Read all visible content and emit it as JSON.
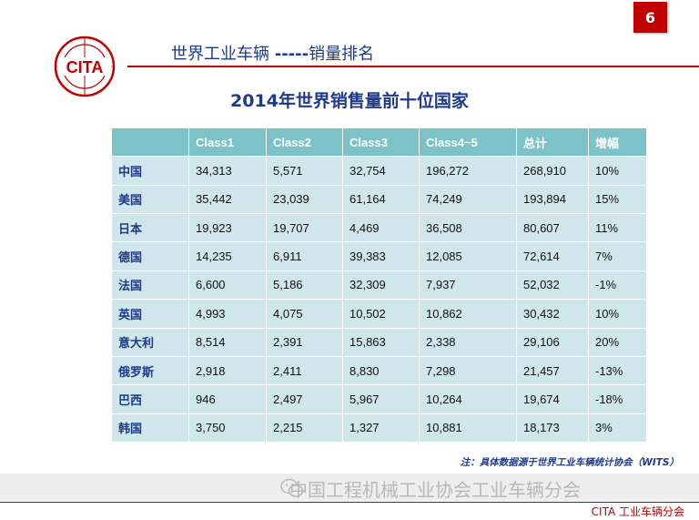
{
  "page_number": "6",
  "logo": {
    "text": "CITA",
    "color": "#c00000"
  },
  "header": {
    "title_left": "世界工业车辆",
    "title_sep": "-----",
    "title_right": "销量排名"
  },
  "table_title": "2014年世界销售量前十位国家",
  "table": {
    "columns": [
      "",
      "Class1",
      "Class2",
      "Class3",
      "Class4~5",
      "总计",
      "增幅"
    ],
    "rows": [
      [
        "中国",
        "34,313",
        "5,571",
        "32,754",
        "196,272",
        "268,910",
        "10%"
      ],
      [
        "美国",
        "35,442",
        "23,039",
        "61,164",
        "74,249",
        "193,894",
        "15%"
      ],
      [
        "日本",
        "19,923",
        "19,707",
        "4,469",
        "36,508",
        "80,607",
        "11%"
      ],
      [
        "德国",
        "14,235",
        "6,911",
        "39,383",
        "12,085",
        "72,614",
        "7%"
      ],
      [
        "法国",
        "6,600",
        "5,186",
        "32,309",
        "7,937",
        "52,032",
        "-1%"
      ],
      [
        "英国",
        "4,993",
        "4,075",
        "10,502",
        "10,862",
        "30,432",
        "10%"
      ],
      [
        "意大利",
        "8,514",
        "2,391",
        "15,863",
        "2,338",
        "29,106",
        "20%"
      ],
      [
        "俄罗斯",
        "2,918",
        "2,411",
        "8,830",
        "7,298",
        "21,457",
        "-13%"
      ],
      [
        "巴西",
        "946",
        "2,497",
        "5,967",
        "10,264",
        "19,674",
        "-18%"
      ],
      [
        "韩国",
        "3,750",
        "2,215",
        "1,327",
        "10,881",
        "18,173",
        "3%"
      ]
    ]
  },
  "note": "注：具体数据源于世界工业车辆统计协会（WITS）",
  "watermark": "中国工程机械工业协会工业车辆分会",
  "footer_org": "CITA 工业车辆分会",
  "colors": {
    "accent": "#c00000",
    "title_blue": "#1f3a8a",
    "header_cell": "#7cc3c9",
    "body_cell": "#cfe6ea"
  },
  "icons": [
    "wechat-icon"
  ]
}
